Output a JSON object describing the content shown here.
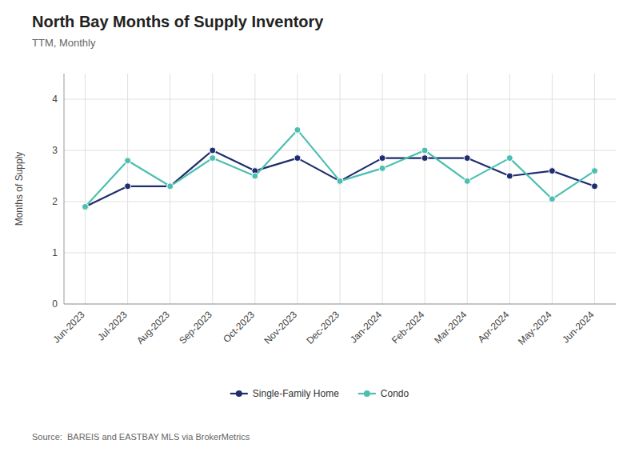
{
  "chart_data": {
    "type": "line",
    "title": "North Bay Months of Supply Inventory",
    "subtitle": "TTM, Monthly",
    "ylabel": "Months of Supply",
    "source": "Source:  BAREIS and EASTBAY MLS via BrokerMetrics",
    "categories": [
      "Jun-2023",
      "Jul-2023",
      "Aug-2023",
      "Sep-2023",
      "Oct-2023",
      "Nov-2023",
      "Dec-2023",
      "Jan-2024",
      "Feb-2024",
      "Mar-2024",
      "Apr-2024",
      "May-2024",
      "Jun-2024"
    ],
    "series": [
      {
        "name": "Single-Family Home",
        "color": "#1f2d6e",
        "marker": "circle",
        "values": [
          1.9,
          2.3,
          2.3,
          3.0,
          2.6,
          2.85,
          2.4,
          2.85,
          2.85,
          2.85,
          2.5,
          2.6,
          2.3
        ]
      },
      {
        "name": "Condo",
        "color": "#4dbfb0",
        "marker": "circle",
        "values": [
          1.9,
          2.8,
          2.3,
          2.85,
          2.5,
          3.4,
          2.4,
          2.65,
          3.0,
          2.4,
          2.85,
          2.05,
          2.6
        ]
      }
    ],
    "ylim": [
      0,
      4.5
    ],
    "yticks": [
      0,
      1,
      2,
      3,
      4
    ],
    "grid": true,
    "legend": "bottom"
  }
}
